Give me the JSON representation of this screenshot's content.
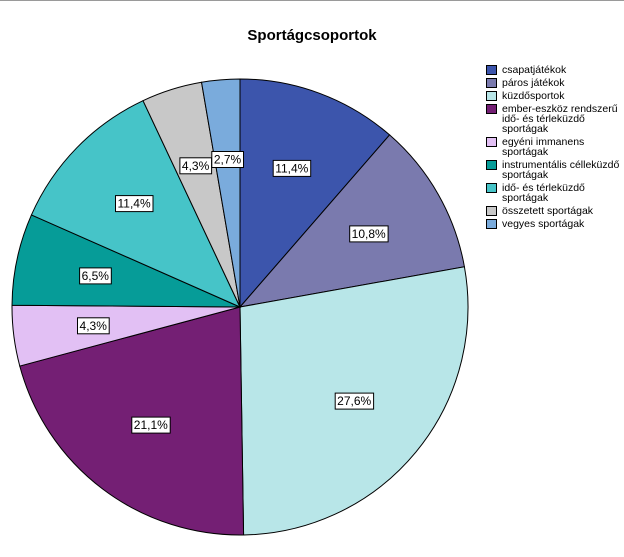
{
  "chart_data": {
    "type": "pie",
    "title": "Sportágcsoportok",
    "legend_position": "right",
    "slices": [
      {
        "name": "csapatjátékok",
        "value": 11.4,
        "label": "11,4%",
        "color": "#3c55ac"
      },
      {
        "name": "páros játékok",
        "value": 10.8,
        "label": "10,8%",
        "color": "#7a7aae"
      },
      {
        "name": "küzdősportok",
        "value": 27.6,
        "label": "27,6%",
        "color": "#b8e6e8"
      },
      {
        "name": "ember-eszköz rendszerű idő- és térleküzdő sportágak",
        "value": 21.1,
        "label": "21,1%",
        "color": "#741f74"
      },
      {
        "name": "egyéni immanens sportágak",
        "value": 4.3,
        "label": "4,3%",
        "color": "#e2c0f4"
      },
      {
        "name": "instrumentális célleküzdő sportágak",
        "value": 6.5,
        "label": "6,5%",
        "color": "#069c98"
      },
      {
        "name": "idő- és térleküzdő sportágak",
        "value": 11.4,
        "label": "11,4%",
        "color": "#46c4c8"
      },
      {
        "name": "összetett sportágak",
        "value": 4.3,
        "label": "4,3%",
        "color": "#c8c8c8"
      },
      {
        "name": "vegyes sportágak",
        "value": 2.7,
        "label": "2,7%",
        "color": "#7aabdc"
      }
    ]
  }
}
